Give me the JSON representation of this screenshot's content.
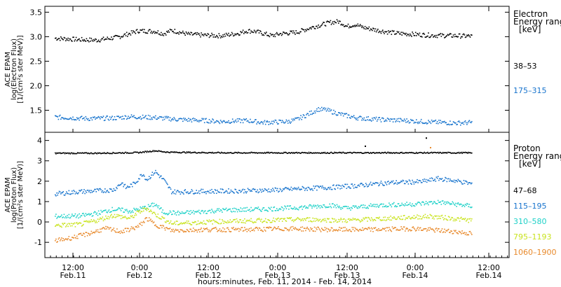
{
  "chart_data": [
    {
      "panel": "electron",
      "type": "scatter",
      "ylabel": [
        "ACE EPAM",
        "log(Electron Flux)",
        "[1/(cm²s ster MeV)]"
      ],
      "yticks": [
        1.5,
        2.0,
        2.5,
        3.0,
        3.5
      ],
      "ylim": [
        1.05,
        3.62
      ],
      "legend_title": [
        "Electron",
        "Energy ranges",
        "[keV]"
      ],
      "series": [
        {
          "name": "38–53",
          "color": "#000000",
          "points": [
            [
              0,
              2.98
            ],
            [
              6,
              2.95
            ],
            [
              10,
              2.94
            ],
            [
              15,
              3.0
            ],
            [
              18,
              3.08
            ],
            [
              20,
              3.13
            ],
            [
              24,
              3.12
            ],
            [
              26,
              3.07
            ],
            [
              28,
              3.14
            ],
            [
              32,
              3.06
            ],
            [
              36,
              3.04
            ],
            [
              40,
              3.03
            ],
            [
              44,
              3.08
            ],
            [
              46,
              3.13
            ],
            [
              48,
              3.12
            ],
            [
              52,
              3.03
            ],
            [
              54,
              3.07
            ],
            [
              58,
              3.1
            ],
            [
              62,
              3.21
            ],
            [
              66,
              3.3
            ],
            [
              68,
              3.32
            ],
            [
              69,
              3.28
            ],
            [
              70,
              3.22
            ],
            [
              72,
              3.26
            ],
            [
              74,
              3.2
            ],
            [
              78,
              3.13
            ],
            [
              82,
              3.08
            ],
            [
              86,
              3.06
            ],
            [
              90,
              3.04
            ],
            [
              96,
              3.03
            ],
            [
              100,
              3.02
            ]
          ]
        },
        {
          "name": "175–315",
          "color": "#1874cd",
          "points": [
            [
              0,
              1.37
            ],
            [
              8,
              1.34
            ],
            [
              14,
              1.35
            ],
            [
              18,
              1.38
            ],
            [
              24,
              1.36
            ],
            [
              30,
              1.32
            ],
            [
              36,
              1.3
            ],
            [
              40,
              1.28
            ],
            [
              46,
              1.3
            ],
            [
              50,
              1.26
            ],
            [
              56,
              1.28
            ],
            [
              58,
              1.32
            ],
            [
              62,
              1.48
            ],
            [
              63,
              1.53
            ],
            [
              65,
              1.52
            ],
            [
              68,
              1.44
            ],
            [
              72,
              1.36
            ],
            [
              78,
              1.32
            ],
            [
              84,
              1.3
            ],
            [
              90,
              1.27
            ],
            [
              96,
              1.25
            ],
            [
              100,
              1.26
            ]
          ]
        }
      ]
    },
    {
      "panel": "proton",
      "type": "scatter",
      "ylabel": [
        "ACE EPAM",
        "log(Proton Flux)",
        "[1/(cm²s ster MeV)]"
      ],
      "yticks": [
        -1,
        0,
        1,
        2,
        3,
        4
      ],
      "ylim": [
        -1.75,
        4.4
      ],
      "legend_title": [
        "Proton",
        "Energy ranges",
        "[keV]"
      ],
      "series": [
        {
          "name": "47–68",
          "color": "#000000",
          "points": [
            [
              0,
              3.4
            ],
            [
              10,
              3.4
            ],
            [
              20,
              3.43
            ],
            [
              24,
              3.52
            ],
            [
              27,
              3.45
            ],
            [
              40,
              3.42
            ],
            [
              60,
              3.42
            ],
            [
              80,
              3.42
            ],
            [
              100,
              3.42
            ]
          ]
        },
        {
          "name": "115–195",
          "color": "#1874cd",
          "points": [
            [
              0,
              1.4
            ],
            [
              5,
              1.5
            ],
            [
              10,
              1.55
            ],
            [
              14,
              1.6
            ],
            [
              16,
              1.95
            ],
            [
              17,
              1.7
            ],
            [
              19,
              1.9
            ],
            [
              21,
              2.4
            ],
            [
              22,
              2.1
            ],
            [
              24,
              2.5
            ],
            [
              26,
              2.1
            ],
            [
              28,
              1.5
            ],
            [
              34,
              1.52
            ],
            [
              44,
              1.55
            ],
            [
              54,
              1.6
            ],
            [
              58,
              1.65
            ],
            [
              66,
              1.72
            ],
            [
              72,
              1.8
            ],
            [
              80,
              1.95
            ],
            [
              88,
              2.0
            ],
            [
              92,
              2.15
            ],
            [
              96,
              2.05
            ],
            [
              100,
              1.9
            ]
          ]
        },
        {
          "name": "310–580",
          "color": "#1fd1c8",
          "points": [
            [
              0,
              0.3
            ],
            [
              6,
              0.32
            ],
            [
              10,
              0.45
            ],
            [
              14,
              0.65
            ],
            [
              18,
              0.55
            ],
            [
              22,
              0.75
            ],
            [
              24,
              0.9
            ],
            [
              26,
              0.5
            ],
            [
              30,
              0.45
            ],
            [
              40,
              0.6
            ],
            [
              50,
              0.65
            ],
            [
              60,
              0.75
            ],
            [
              66,
              0.85
            ],
            [
              70,
              0.7
            ],
            [
              78,
              0.85
            ],
            [
              86,
              0.9
            ],
            [
              92,
              1.0
            ],
            [
              96,
              0.9
            ],
            [
              100,
              0.8
            ]
          ]
        },
        {
          "name": "795–1193",
          "color": "#c9e31f",
          "points": [
            [
              0,
              -0.15
            ],
            [
              6,
              -0.1
            ],
            [
              10,
              0.1
            ],
            [
              14,
              0.35
            ],
            [
              18,
              0.2
            ],
            [
              20,
              0.5
            ],
            [
              22,
              0.7
            ],
            [
              24,
              0.4
            ],
            [
              28,
              -0.05
            ],
            [
              40,
              0.05
            ],
            [
              50,
              0.1
            ],
            [
              60,
              0.15
            ],
            [
              70,
              0.1
            ],
            [
              80,
              0.2
            ],
            [
              90,
              0.3
            ],
            [
              100,
              0.1
            ]
          ]
        },
        {
          "name": "1060–1900",
          "color": "#e8892b",
          "points": [
            [
              0,
              -0.9
            ],
            [
              4,
              -0.75
            ],
            [
              8,
              -0.55
            ],
            [
              12,
              -0.3
            ],
            [
              16,
              -0.45
            ],
            [
              20,
              -0.2
            ],
            [
              22,
              0.2
            ],
            [
              24,
              -0.1
            ],
            [
              28,
              -0.4
            ],
            [
              36,
              -0.35
            ],
            [
              46,
              -0.35
            ],
            [
              56,
              -0.3
            ],
            [
              66,
              -0.35
            ],
            [
              76,
              -0.35
            ],
            [
              86,
              -0.3
            ],
            [
              96,
              -0.45
            ],
            [
              100,
              -0.55
            ]
          ]
        }
      ]
    }
  ],
  "xaxis": {
    "title": "hours:minutes, Feb. 11, 2014 - Feb. 14, 2014",
    "ticks": [
      {
        "time": "12:00",
        "date": "Feb.11"
      },
      {
        "time": "0:00",
        "date": "Feb.12"
      },
      {
        "time": "12:00",
        "date": "Feb.12"
      },
      {
        "time": "0:00",
        "date": "Feb.13"
      },
      {
        "time": "12:00",
        "date": "Feb.13"
      },
      {
        "time": "0:00",
        "date": "Feb.14"
      },
      {
        "time": "12:00",
        "date": "Feb.14"
      }
    ]
  }
}
